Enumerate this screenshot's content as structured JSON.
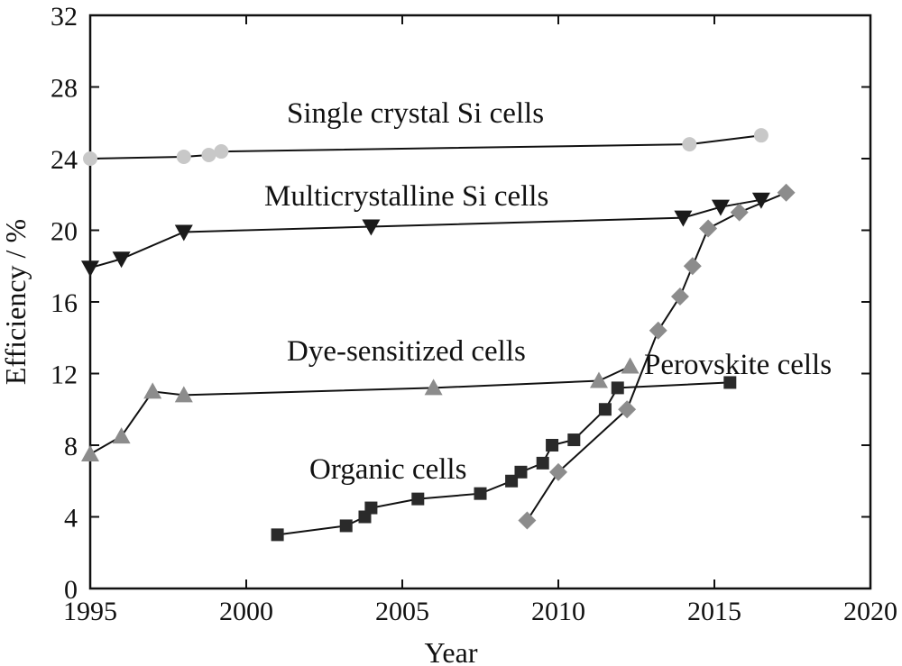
{
  "chart_data": {
    "type": "line",
    "title": "",
    "xlabel": "Year",
    "ylabel": "Efficiency / %",
    "xlim": [
      1995,
      2020
    ],
    "ylim": [
      0,
      32
    ],
    "xticks": [
      1995,
      2000,
      2005,
      2010,
      2015,
      2020
    ],
    "yticks": [
      0,
      4,
      8,
      12,
      16,
      20,
      24,
      28,
      32
    ],
    "grid": false,
    "legend": "none",
    "series": [
      {
        "name": "Single crystal Si cells",
        "marker": "circle",
        "color": "#c8c8c8",
        "x": [
          1995,
          1998,
          1998.8,
          1999.2,
          2014.2,
          2016.5
        ],
        "y": [
          24.0,
          24.1,
          24.2,
          24.4,
          24.8,
          25.3
        ]
      },
      {
        "name": "Multicrystalline Si cells",
        "marker": "triangle-down",
        "color": "#1a1a1a",
        "x": [
          1995,
          1996,
          1998,
          2004,
          2014,
          2015.2,
          2016.5
        ],
        "y": [
          17.9,
          18.4,
          19.9,
          20.2,
          20.7,
          21.3,
          21.7
        ]
      },
      {
        "name": "Dye-sensitized cells",
        "marker": "triangle-up",
        "color": "#8c8c8c",
        "x": [
          1995,
          1996,
          1997,
          1998,
          2006,
          2011.3,
          2012.3
        ],
        "y": [
          7.5,
          8.5,
          11.0,
          10.8,
          11.2,
          11.6,
          12.4
        ]
      },
      {
        "name": "Organic cells",
        "marker": "square",
        "color": "#2a2a2a",
        "x": [
          2001,
          2003.2,
          2003.8,
          2004,
          2005.5,
          2007.5,
          2008.5,
          2008.8,
          2009.5,
          2009.8,
          2010.5,
          2011.5,
          2011.9,
          2015.5
        ],
        "y": [
          3.0,
          3.5,
          4.0,
          4.5,
          5.0,
          5.3,
          6.0,
          6.5,
          7.0,
          8.0,
          8.3,
          10.0,
          11.2,
          11.5
        ]
      },
      {
        "name": "Perovskite cells",
        "marker": "diamond",
        "color": "#8c8c8c",
        "x": [
          2009,
          2010,
          2012.2,
          2013.2,
          2013.9,
          2014.3,
          2014.8,
          2015.8,
          2017.3
        ],
        "y": [
          3.8,
          6.5,
          10.0,
          14.4,
          16.3,
          18.0,
          20.1,
          21.0,
          22.1
        ]
      }
    ]
  }
}
